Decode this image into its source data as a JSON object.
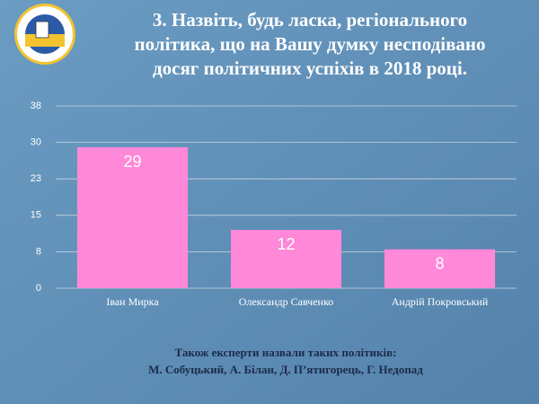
{
  "chart_data": {
    "type": "bar",
    "title": [
      "3. Назвіть, будь ласка, регіонального",
      "політика, що на Вашу думку несподівано",
      "досяг політичних успіхів в 2018 році."
    ],
    "categories": [
      "Іван Мирка",
      "Олександр Савченко",
      "Андрій Покровський"
    ],
    "values": [
      29,
      12,
      8
    ],
    "color": "#ff88d8",
    "ylim": [
      0,
      37.5
    ],
    "yticks": [
      0,
      {
        "value": 7.5,
        "label": "8"
      },
      15,
      {
        "value": 22.5,
        "label": "23"
      },
      30,
      {
        "value": 37.5,
        "label": "38"
      }
    ],
    "grid": true
  },
  "footer": {
    "lines": [
      "Також експерти назвали таких політиків:",
      "М. Собуцький, А. Білан, Д. П’ятигорець, Г. Недопад"
    ]
  }
}
